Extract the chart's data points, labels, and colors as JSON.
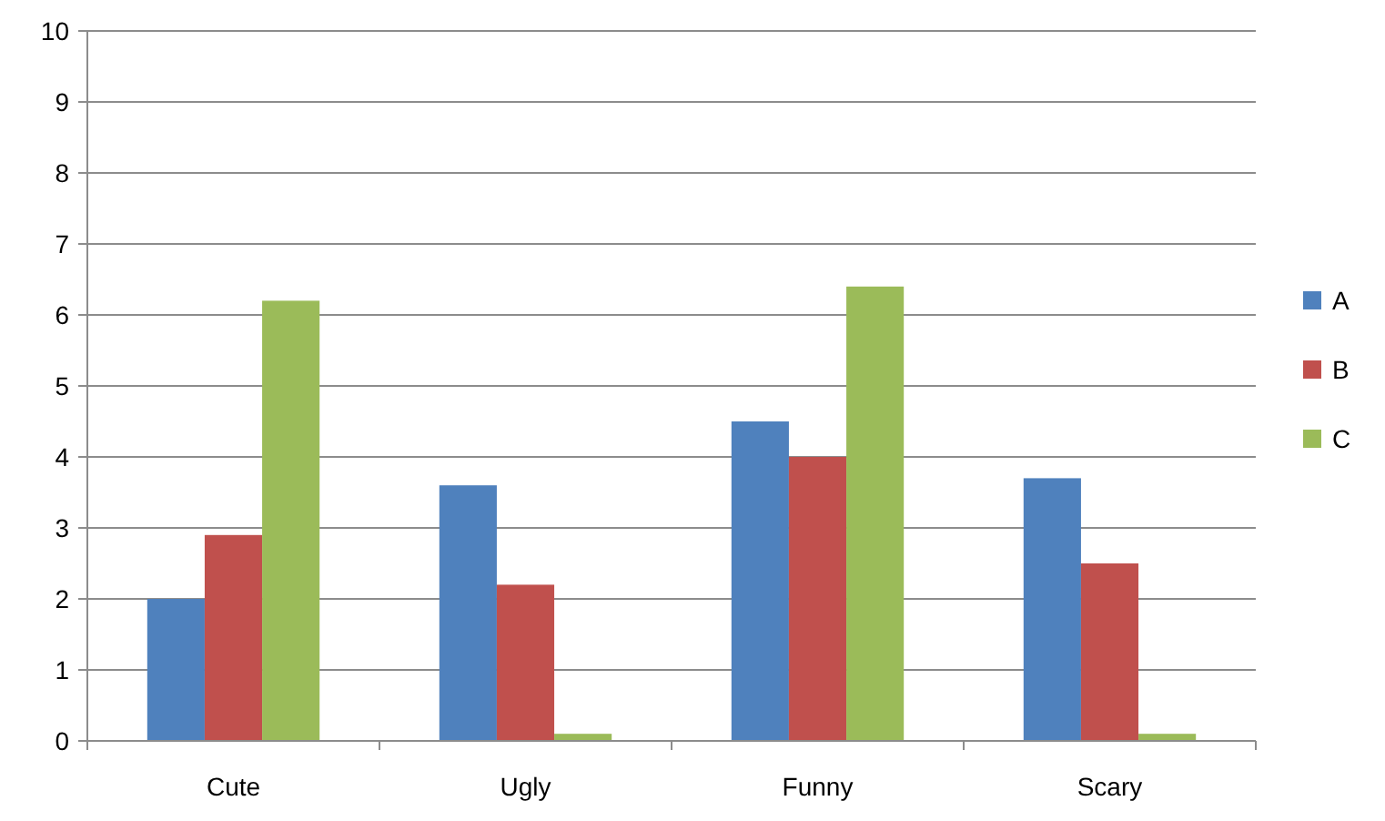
{
  "chart_data": {
    "type": "bar",
    "categories": [
      "Cute",
      "Ugly",
      "Funny",
      "Scary"
    ],
    "series": [
      {
        "name": "A",
        "color": "#4f81bd",
        "values": [
          2.0,
          3.6,
          4.5,
          3.7
        ]
      },
      {
        "name": "B",
        "color": "#c0504d",
        "values": [
          2.9,
          2.2,
          4.0,
          2.5
        ]
      },
      {
        "name": "C",
        "color": "#9bbb59",
        "values": [
          6.2,
          0.1,
          6.4,
          0.1
        ]
      }
    ],
    "ylim": [
      0,
      10
    ],
    "yticks": [
      0,
      1,
      2,
      3,
      4,
      5,
      6,
      7,
      8,
      9,
      10
    ],
    "grid": "y",
    "legend": "right"
  }
}
